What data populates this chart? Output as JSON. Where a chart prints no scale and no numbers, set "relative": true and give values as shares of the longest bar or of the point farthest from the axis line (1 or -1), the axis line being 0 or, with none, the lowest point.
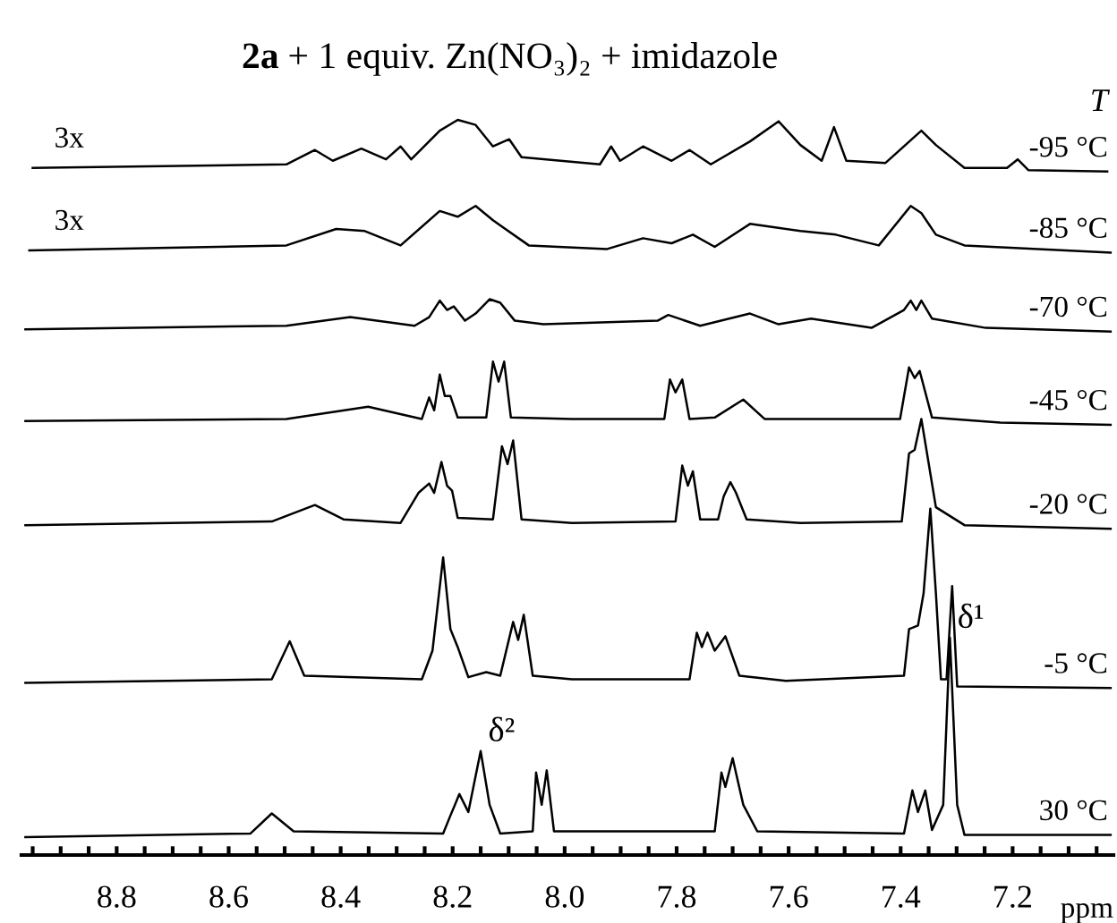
{
  "chart_data": {
    "type": "line",
    "title": "2a + 1 equiv. Zn(NO₃)₂ + imidazole",
    "xlabel": "ppm",
    "legend_title": "T",
    "relative": true,
    "legend": false,
    "grid": false,
    "marker": "none",
    "line_style": "solid",
    "xlim": [
      8.97,
      7.02
    ],
    "xticks": [
      {
        "value": 8.95,
        "label": null
      },
      {
        "value": 8.9,
        "label": null
      },
      {
        "value": 8.85,
        "label": null
      },
      8.8,
      {
        "value": 8.75,
        "label": null
      },
      {
        "value": 8.7,
        "label": null
      },
      {
        "value": 8.65,
        "label": null
      },
      8.6,
      {
        "value": 8.55,
        "label": null
      },
      {
        "value": 8.5,
        "label": null
      },
      {
        "value": 8.45,
        "label": null
      },
      8.4,
      {
        "value": 8.35,
        "label": null
      },
      {
        "value": 8.3,
        "label": null
      },
      {
        "value": 8.25,
        "label": null
      },
      8.2,
      {
        "value": 8.15,
        "label": null
      },
      {
        "value": 8.1,
        "label": null
      },
      {
        "value": 8.05,
        "label": null
      },
      {
        "value": 8.0,
        "label": "8.0"
      },
      {
        "value": 7.95,
        "label": null
      },
      {
        "value": 7.9,
        "label": null
      },
      {
        "value": 7.85,
        "label": null
      },
      7.8,
      {
        "value": 7.75,
        "label": null
      },
      {
        "value": 7.7,
        "label": null
      },
      {
        "value": 7.65,
        "label": null
      },
      7.6,
      {
        "value": 7.55,
        "label": null
      },
      {
        "value": 7.5,
        "label": null
      },
      {
        "value": 7.45,
        "label": null
      },
      7.4,
      {
        "value": 7.35,
        "label": null
      },
      {
        "value": 7.3,
        "label": null
      },
      {
        "value": 7.25,
        "label": null
      },
      7.2,
      {
        "value": 7.15,
        "label": null
      },
      {
        "value": 7.1,
        "label": null
      },
      {
        "value": 7.05,
        "label": null
      }
    ],
    "annotations": [
      "3x",
      "3x",
      {
        "text": "δ²",
        "x": 8.15,
        "y": 0.12
      },
      {
        "text": "δ¹",
        "x": 7.312,
        "y": 0.278
      }
    ],
    "series": [
      {
        "name": "-95 °C",
        "color": "#000000",
        "x": [
          8.95,
          8.497,
          8.446,
          8.414,
          8.363,
          8.319,
          8.293,
          8.274,
          8.223,
          8.191,
          8.159,
          8.128,
          8.099,
          8.077,
          7.937,
          7.917,
          7.901,
          7.86,
          7.809,
          7.777,
          7.739,
          7.669,
          7.618,
          7.579,
          7.541,
          7.519,
          7.497,
          7.427,
          7.363,
          7.337,
          7.286,
          7.21,
          7.191,
          7.172,
          7.031
        ],
        "values": [
          0.933,
          0.938,
          0.958,
          0.943,
          0.96,
          0.945,
          0.963,
          0.945,
          0.985,
          1.0,
          0.993,
          0.963,
          0.973,
          0.948,
          0.938,
          0.963,
          0.943,
          0.963,
          0.943,
          0.958,
          0.938,
          0.97,
          0.998,
          0.965,
          0.943,
          0.99,
          0.943,
          0.94,
          0.985,
          0.965,
          0.933,
          0.933,
          0.945,
          0.93,
          0.928
        ]
      },
      {
        "name": "-85 °C",
        "color": "#000000",
        "x": [
          8.956,
          8.497,
          8.408,
          8.357,
          8.293,
          8.223,
          8.191,
          8.159,
          8.128,
          8.064,
          7.924,
          7.86,
          7.809,
          7.771,
          7.732,
          7.669,
          7.624,
          7.579,
          7.516,
          7.439,
          7.382,
          7.363,
          7.337,
          7.286,
          7.025
        ],
        "values": [
          0.818,
          0.825,
          0.848,
          0.845,
          0.825,
          0.873,
          0.865,
          0.88,
          0.86,
          0.825,
          0.82,
          0.835,
          0.828,
          0.84,
          0.823,
          0.855,
          0.85,
          0.845,
          0.84,
          0.825,
          0.88,
          0.87,
          0.84,
          0.825,
          0.815
        ]
      },
      {
        "name": "-70 °C",
        "color": "#000000",
        "x": [
          8.963,
          8.497,
          8.383,
          8.268,
          8.242,
          8.223,
          8.21,
          8.198,
          8.178,
          8.159,
          8.134,
          8.115,
          8.089,
          8.038,
          7.834,
          7.815,
          7.758,
          7.669,
          7.618,
          7.56,
          7.452,
          7.394,
          7.382,
          7.372,
          7.363,
          7.344,
          7.248,
          7.025
        ],
        "values": [
          0.708,
          0.713,
          0.725,
          0.713,
          0.725,
          0.748,
          0.735,
          0.74,
          0.72,
          0.73,
          0.75,
          0.745,
          0.72,
          0.715,
          0.72,
          0.728,
          0.713,
          0.73,
          0.715,
          0.723,
          0.71,
          0.735,
          0.748,
          0.735,
          0.748,
          0.723,
          0.71,
          0.705
        ]
      },
      {
        "name": "-45 °C",
        "color": "#000000",
        "x": [
          8.963,
          8.497,
          8.351,
          8.255,
          8.242,
          8.233,
          8.223,
          8.214,
          8.204,
          8.191,
          8.14,
          8.128,
          8.118,
          8.108,
          8.096,
          7.987,
          7.822,
          7.812,
          7.802,
          7.79,
          7.777,
          7.732,
          7.681,
          7.643,
          7.401,
          7.385,
          7.375,
          7.366,
          7.344,
          7.222,
          7.025
        ],
        "values": [
          0.58,
          0.583,
          0.6,
          0.583,
          0.613,
          0.595,
          0.645,
          0.615,
          0.615,
          0.585,
          0.585,
          0.663,
          0.635,
          0.663,
          0.585,
          0.583,
          0.583,
          0.638,
          0.62,
          0.638,
          0.583,
          0.585,
          0.61,
          0.583,
          0.583,
          0.655,
          0.64,
          0.65,
          0.585,
          0.578,
          0.575
        ]
      },
      {
        "name": "-20 °C",
        "color": "#000000",
        "x": [
          8.963,
          8.523,
          8.446,
          8.395,
          8.293,
          8.261,
          8.242,
          8.233,
          8.22,
          8.21,
          8.201,
          8.191,
          8.128,
          8.112,
          8.102,
          8.092,
          8.077,
          7.987,
          7.802,
          7.79,
          7.78,
          7.771,
          7.758,
          7.726,
          7.716,
          7.704,
          7.694,
          7.675,
          7.579,
          7.398,
          7.385,
          7.375,
          7.363,
          7.337,
          7.286,
          7.025
        ],
        "values": [
          0.435,
          0.44,
          0.463,
          0.443,
          0.438,
          0.48,
          0.493,
          0.48,
          0.523,
          0.49,
          0.483,
          0.445,
          0.443,
          0.545,
          0.52,
          0.553,
          0.443,
          0.438,
          0.44,
          0.518,
          0.49,
          0.51,
          0.443,
          0.443,
          0.475,
          0.495,
          0.48,
          0.443,
          0.438,
          0.44,
          0.535,
          0.54,
          0.583,
          0.46,
          0.435,
          0.43
        ]
      },
      {
        "name": "-5 °C",
        "color": "#000000",
        "x": [
          8.963,
          8.523,
          8.491,
          8.465,
          8.255,
          8.236,
          8.217,
          8.204,
          8.191,
          8.172,
          8.14,
          8.115,
          8.092,
          8.083,
          8.073,
          8.057,
          7.987,
          7.777,
          7.764,
          7.755,
          7.745,
          7.732,
          7.713,
          7.688,
          7.605,
          7.394,
          7.385,
          7.369,
          7.359,
          7.347,
          7.337,
          7.328,
          7.318,
          7.308,
          7.299,
          7.025
        ],
        "values": [
          0.215,
          0.22,
          0.273,
          0.225,
          0.22,
          0.26,
          0.39,
          0.29,
          0.265,
          0.223,
          0.23,
          0.225,
          0.3,
          0.275,
          0.31,
          0.225,
          0.22,
          0.22,
          0.285,
          0.265,
          0.285,
          0.26,
          0.28,
          0.225,
          0.218,
          0.225,
          0.29,
          0.295,
          0.34,
          0.458,
          0.34,
          0.22,
          0.22,
          0.35,
          0.21,
          0.208
        ]
      },
      {
        "name": "30 °C",
        "color": "#000000",
        "x": [
          8.963,
          8.561,
          8.523,
          8.484,
          8.217,
          8.204,
          8.188,
          8.172,
          8.15,
          8.134,
          8.115,
          8.057,
          8.051,
          8.041,
          8.032,
          8.019,
          7.732,
          7.72,
          7.713,
          7.7,
          7.681,
          7.656,
          7.394,
          7.379,
          7.369,
          7.356,
          7.344,
          7.324,
          7.312,
          7.299,
          7.286,
          7.025
        ],
        "values": [
          0.0,
          0.005,
          0.033,
          0.008,
          0.005,
          0.03,
          0.06,
          0.035,
          0.12,
          0.045,
          0.005,
          0.008,
          0.09,
          0.045,
          0.093,
          0.008,
          0.008,
          0.09,
          0.07,
          0.11,
          0.045,
          0.008,
          0.005,
          0.065,
          0.035,
          0.065,
          0.01,
          0.045,
          0.278,
          0.045,
          0.003,
          0.003
        ]
      }
    ]
  }
}
